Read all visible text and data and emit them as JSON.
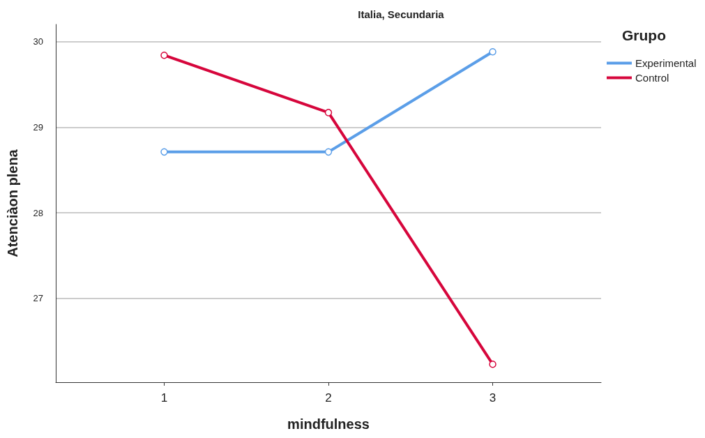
{
  "chart_data": {
    "type": "line",
    "title": "Italia, Secundaria",
    "xlabel": "mindfulness",
    "ylabel": "Atenciàon plena",
    "legend_title": "Grupo",
    "x": [
      1,
      2,
      3
    ],
    "xlim": [
      0.34,
      3.66
    ],
    "xticks": [
      1,
      2,
      3
    ],
    "ylim": [
      26.02,
      30.2
    ],
    "yticks": [
      27,
      28,
      29,
      30
    ],
    "series": [
      {
        "name": "Experimental",
        "color": "#5b9ee8",
        "values": [
          28.71,
          28.71,
          29.88
        ]
      },
      {
        "name": "Control",
        "color": "#d6063c",
        "values": [
          29.84,
          29.17,
          26.23
        ]
      }
    ],
    "grid": "y",
    "legend": "top right",
    "marker": "circle",
    "line_style": "solid"
  }
}
